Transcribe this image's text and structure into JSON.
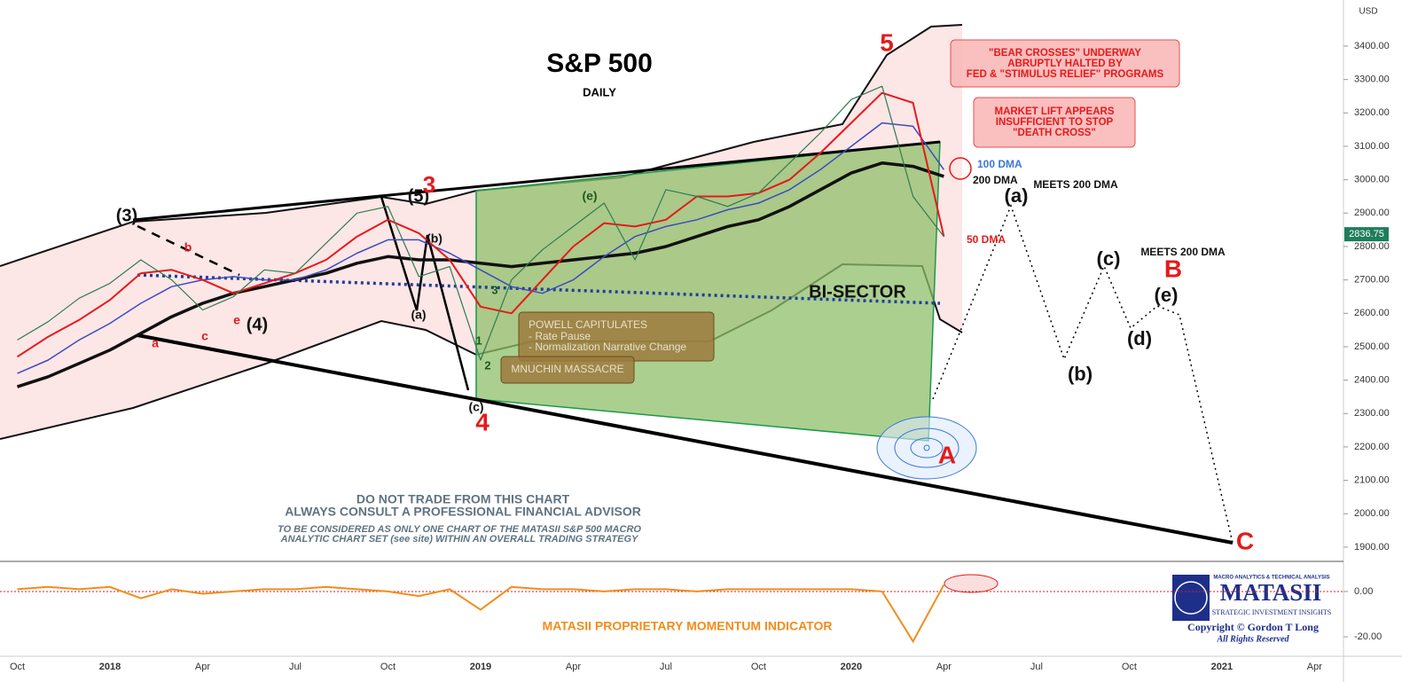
{
  "chart_data": [
    {
      "type": "line",
      "title": "S&P 500",
      "subtitle": "DAILY",
      "currency": "USD",
      "categories": [
        "Oct",
        null,
        null,
        "2018",
        null,
        null,
        "Apr",
        null,
        null,
        "Jul",
        null,
        null,
        "Oct",
        null,
        null,
        "2019",
        null,
        null,
        "Apr",
        null,
        null,
        "Jul",
        null,
        null,
        "Oct",
        null,
        null,
        "2020",
        null,
        null,
        "Apr",
        null,
        null,
        "Jul",
        null,
        null,
        "Oct",
        null,
        null,
        "2021",
        null,
        null,
        "Apr"
      ],
      "series": [
        {
          "color": "#2e7d4f",
          "values": [
            2520,
            2575,
            2645,
            2690,
            2760,
            2700,
            2610,
            2650,
            2730,
            2720,
            2810,
            2900,
            2920,
            2710,
            2740,
            2460,
            2700,
            2790,
            2860,
            2930,
            2760,
            2970,
            2950,
            2920,
            2960,
            3050,
            3140,
            3240,
            3280,
            2950,
            2830,
            null,
            null,
            null,
            null,
            null,
            null,
            null,
            null,
            null,
            null,
            null,
            null
          ]
        },
        {
          "name": "50 DMA",
          "color": "#e41a1c",
          "values": [
            2470,
            2530,
            2580,
            2640,
            2720,
            2730,
            2700,
            2660,
            2690,
            2720,
            2760,
            2830,
            2880,
            2840,
            2760,
            2620,
            2600,
            2700,
            2800,
            2870,
            2860,
            2880,
            2950,
            2950,
            2960,
            3000,
            3080,
            3170,
            3260,
            3230,
            2830,
            null,
            null,
            null,
            null,
            null,
            null,
            null,
            null,
            null,
            null,
            null,
            null
          ]
        },
        {
          "name": "100 DMA",
          "color": "#3b4cc0",
          "values": [
            2420,
            2460,
            2520,
            2570,
            2630,
            2680,
            2700,
            2710,
            2700,
            2700,
            2730,
            2780,
            2820,
            2820,
            2780,
            2730,
            2680,
            2660,
            2700,
            2770,
            2830,
            2860,
            2880,
            2910,
            2930,
            2970,
            3030,
            3100,
            3170,
            3160,
            3030,
            null,
            null,
            null,
            null,
            null,
            null,
            null,
            null,
            null,
            null,
            null,
            null
          ]
        },
        {
          "name": "200 DMA",
          "color": "#111111",
          "values": [
            2380,
            2410,
            2450,
            2490,
            2540,
            2590,
            2630,
            2660,
            2680,
            2700,
            2720,
            2750,
            2770,
            2760,
            2760,
            2750,
            2740,
            2750,
            2760,
            2770,
            2780,
            2800,
            2830,
            2860,
            2880,
            2920,
            2970,
            3020,
            3050,
            3040,
            3010,
            null,
            null,
            null,
            null,
            null,
            null,
            null,
            null,
            null,
            null,
            null,
            null
          ]
        }
      ],
      "last_value": 2836.75,
      "ylim": [
        1860,
        3538
      ],
      "yticks": [
        {
          "value": 1900,
          "label": "1900.00"
        },
        {
          "value": 2000,
          "label": "2000.00"
        },
        {
          "value": 2100,
          "label": "2100.00"
        },
        {
          "value": 2200,
          "label": "2200.00"
        },
        {
          "value": 2300,
          "label": "2300.00"
        },
        {
          "value": 2400,
          "label": "2400.00"
        },
        {
          "value": 2500,
          "label": "2500.00"
        },
        {
          "value": 2600,
          "label": "2600.00"
        },
        {
          "value": 2700,
          "label": "2700.00"
        },
        {
          "value": 2800,
          "label": "2800.00"
        },
        {
          "value": 2900,
          "label": "2900.00"
        },
        {
          "value": 3000,
          "label": "3000.00"
        },
        {
          "value": 3100,
          "label": "3100.00"
        },
        {
          "value": 3200,
          "label": "3200.00"
        },
        {
          "value": 3300,
          "label": "3300.00"
        },
        {
          "value": 3400,
          "label": "3400.00"
        }
      ],
      "annotations": [
        "(3)",
        "(5)",
        "3",
        "(4)",
        "4",
        "5",
        "A",
        "B",
        "C",
        "(a)",
        "(b)",
        "(c)",
        "(d)",
        "(e)",
        "(a)",
        "(b)",
        "(c)",
        "(e)",
        "a",
        "b",
        "c",
        "e",
        "1",
        "2",
        "3",
        "MEETS 200 DMA",
        "MEETS 200 DMA",
        "BI-SECTOR"
      ],
      "boxes": {
        "powell": [
          "POWELL CAPITULATES",
          "- Rate Pause",
          "- Normalization Narrative Change"
        ],
        "mnuchin": "MNUCHIN MASSACRE",
        "bear": [
          "\"BEAR CROSSES\" UNDERWAY",
          "ABRUPTLY HALTED BY",
          "FED & \"STIMULUS RELIEF\" PROGRAMS"
        ],
        "lift": [
          "MARKET LIFT APPEARS",
          "INSUFFICIENT TO STOP",
          "\"DEATH CROSS\""
        ]
      },
      "disclaimer": [
        "DO NOT TRADE FROM THIS CHART",
        "ALWAYS CONSULT A PROFESSIONAL FINANCIAL ADVISOR",
        "TO BE CONSIDERED AS ONLY ONE CHART OF THE MATASII S&P 500 MACRO",
        "ANALYTIC CHART SET (see site) WITHIN AN OVERALL TRADING STRATEGY"
      ],
      "logo": {
        "tagline": "MACRO ANALYTICS & TECHNICAL ANALYSIS",
        "name": "MATASII",
        "subtitle": "STRATEGIC INVESTMENT INSIGHTS",
        "copyright": "Copyright © Gordon T Long",
        "rights": "All Rights Reserved"
      }
    },
    {
      "type": "line",
      "title": "MATASII PROPRIETARY MOMENTUM INDICATOR",
      "color": "#f28c1b",
      "values": [
        1,
        2,
        1,
        2,
        -3,
        1,
        -1,
        0,
        1,
        1,
        2,
        1,
        0,
        -2,
        1,
        -8,
        2,
        1,
        1,
        0,
        1,
        1,
        0,
        1,
        1,
        1,
        1,
        1,
        0,
        -22,
        3,
        null,
        null,
        null,
        null,
        null,
        null,
        null,
        null,
        null,
        null,
        null,
        null
      ],
      "ylim": [
        -27.8,
        12.5
      ],
      "yticks": [
        {
          "value": 0,
          "label": "0.00"
        },
        {
          "value": -20,
          "label": "-20.00"
        }
      ]
    }
  ]
}
